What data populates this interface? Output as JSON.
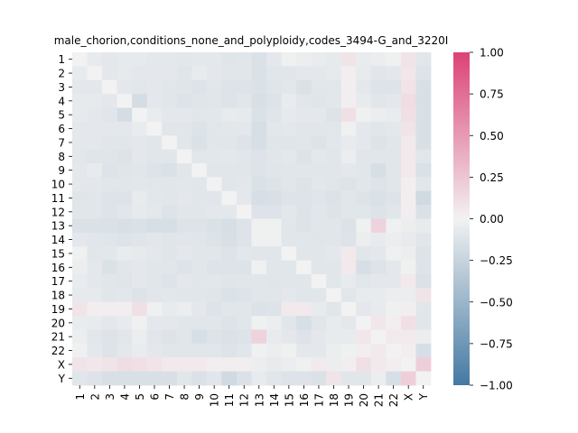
{
  "chart_data": {
    "type": "heatmap",
    "title": "male_chorion,conditions_none_and_polyploidy,codes_3494-G_and_3220I",
    "xlabel": "",
    "ylabel": "",
    "labels": [
      "1",
      "2",
      "3",
      "4",
      "5",
      "6",
      "7",
      "8",
      "9",
      "10",
      "11",
      "12",
      "13",
      "14",
      "15",
      "16",
      "17",
      "18",
      "19",
      "20",
      "21",
      "22",
      "X",
      "Y"
    ],
    "colorbar": {
      "min": -1.0,
      "max": 1.0,
      "ticks": [
        "1.00",
        "0.75",
        "0.50",
        "0.25",
        "0.00",
        "−0.25",
        "−0.50",
        "−0.75",
        "−1.00"
      ],
      "tick_values": [
        1.0,
        0.75,
        0.5,
        0.25,
        0.0,
        -0.25,
        -0.5,
        -0.75,
        -1.0
      ],
      "colors": {
        "negative": "#4479a2",
        "center": "#f2f2f2",
        "positive": "#dc4276"
      }
    },
    "matrix": [
      [
        0.0,
        -0.06,
        -0.08,
        -0.07,
        -0.07,
        -0.08,
        -0.08,
        -0.09,
        -0.08,
        -0.08,
        -0.11,
        -0.1,
        -0.14,
        -0.08,
        -0.02,
        -0.04,
        -0.05,
        -0.07,
        0.08,
        -0.05,
        -0.04,
        -0.02,
        0.08,
        -0.1
      ],
      [
        -0.06,
        0.0,
        -0.08,
        -0.07,
        -0.08,
        -0.08,
        -0.08,
        -0.11,
        -0.06,
        -0.08,
        -0.1,
        -0.1,
        -0.14,
        -0.1,
        -0.1,
        -0.08,
        -0.08,
        -0.07,
        0.02,
        -0.06,
        -0.1,
        -0.08,
        0.06,
        -0.12
      ],
      [
        -0.08,
        -0.08,
        0.0,
        -0.08,
        -0.1,
        -0.08,
        -0.1,
        -0.11,
        -0.12,
        -0.1,
        -0.12,
        -0.12,
        -0.14,
        -0.11,
        -0.09,
        -0.14,
        -0.1,
        -0.1,
        0.02,
        -0.08,
        -0.12,
        -0.12,
        0.08,
        -0.15
      ],
      [
        -0.07,
        -0.07,
        -0.08,
        0.0,
        -0.17,
        -0.08,
        -0.1,
        -0.12,
        -0.11,
        -0.1,
        -0.12,
        -0.1,
        -0.15,
        -0.12,
        -0.05,
        -0.1,
        -0.11,
        -0.09,
        0.02,
        -0.06,
        -0.1,
        -0.08,
        0.12,
        -0.15
      ],
      [
        -0.07,
        -0.08,
        -0.1,
        -0.17,
        0.0,
        -0.05,
        -0.08,
        -0.08,
        -0.1,
        -0.09,
        -0.06,
        -0.07,
        -0.14,
        -0.11,
        -0.07,
        -0.08,
        -0.08,
        -0.12,
        0.1,
        -0.02,
        -0.04,
        -0.05,
        0.1,
        -0.15
      ],
      [
        -0.08,
        -0.08,
        -0.08,
        -0.08,
        -0.05,
        0.0,
        -0.1,
        -0.1,
        -0.12,
        -0.1,
        -0.09,
        -0.08,
        -0.16,
        -0.09,
        -0.08,
        -0.1,
        -0.1,
        -0.1,
        -0.02,
        -0.08,
        -0.1,
        -0.08,
        0.08,
        -0.15
      ],
      [
        -0.08,
        -0.08,
        -0.1,
        -0.1,
        -0.08,
        -0.1,
        0.0,
        -0.1,
        -0.14,
        -0.1,
        -0.1,
        -0.12,
        -0.16,
        -0.11,
        -0.11,
        -0.1,
        -0.12,
        -0.09,
        -0.06,
        -0.08,
        -0.12,
        -0.1,
        0.05,
        -0.15
      ],
      [
        -0.09,
        -0.11,
        -0.11,
        -0.12,
        -0.08,
        -0.1,
        -0.1,
        0.0,
        -0.1,
        -0.09,
        -0.08,
        -0.1,
        -0.12,
        -0.1,
        -0.08,
        -0.12,
        -0.08,
        -0.1,
        -0.04,
        -0.1,
        -0.1,
        -0.1,
        0.05,
        -0.1
      ],
      [
        -0.08,
        -0.06,
        -0.12,
        -0.11,
        -0.1,
        -0.12,
        -0.14,
        -0.1,
        0.0,
        -0.1,
        -0.1,
        -0.1,
        -0.12,
        -0.11,
        -0.1,
        -0.1,
        -0.1,
        -0.1,
        -0.08,
        -0.1,
        -0.16,
        -0.1,
        0.05,
        -0.14
      ],
      [
        -0.08,
        -0.08,
        -0.1,
        -0.1,
        -0.09,
        -0.1,
        -0.1,
        -0.09,
        -0.1,
        0.0,
        -0.1,
        -0.08,
        -0.14,
        -0.12,
        -0.1,
        -0.12,
        -0.09,
        -0.11,
        -0.12,
        -0.1,
        -0.12,
        -0.1,
        0.02,
        -0.1
      ],
      [
        -0.11,
        -0.1,
        -0.12,
        -0.12,
        -0.06,
        -0.09,
        -0.1,
        -0.08,
        -0.1,
        -0.1,
        0.0,
        -0.08,
        -0.16,
        -0.15,
        -0.12,
        -0.12,
        -0.11,
        -0.13,
        -0.1,
        -0.12,
        -0.14,
        -0.12,
        0.02,
        -0.2
      ],
      [
        -0.1,
        -0.1,
        -0.12,
        -0.1,
        -0.07,
        -0.08,
        -0.12,
        -0.1,
        -0.1,
        -0.08,
        -0.08,
        0.0,
        -0.12,
        -0.12,
        -0.09,
        -0.12,
        -0.1,
        -0.12,
        -0.1,
        -0.1,
        -0.12,
        -0.1,
        0.02,
        -0.14
      ],
      [
        -0.14,
        -0.14,
        -0.14,
        -0.15,
        -0.14,
        -0.16,
        -0.16,
        -0.12,
        -0.12,
        -0.14,
        -0.16,
        -0.12,
        -0.02,
        -0.02,
        -0.1,
        -0.12,
        -0.1,
        -0.1,
        -0.13,
        -0.02,
        0.18,
        -0.02,
        -0.04,
        -0.06
      ],
      [
        -0.08,
        -0.1,
        -0.11,
        -0.12,
        -0.11,
        -0.09,
        -0.11,
        -0.1,
        -0.11,
        -0.12,
        -0.15,
        -0.12,
        -0.02,
        -0.02,
        -0.1,
        -0.1,
        -0.11,
        -0.1,
        -0.12,
        -0.04,
        -0.06,
        -0.04,
        -0.06,
        -0.1
      ],
      [
        -0.02,
        -0.1,
        -0.09,
        -0.05,
        -0.07,
        -0.08,
        -0.11,
        -0.08,
        -0.1,
        -0.1,
        -0.12,
        -0.09,
        -0.1,
        -0.1,
        0.0,
        -0.1,
        -0.1,
        -0.08,
        0.05,
        -0.1,
        -0.08,
        -0.02,
        -0.04,
        -0.12
      ],
      [
        -0.04,
        -0.08,
        -0.14,
        -0.1,
        -0.08,
        -0.1,
        -0.1,
        -0.12,
        -0.1,
        -0.12,
        -0.12,
        -0.12,
        -0.02,
        -0.1,
        -0.1,
        0.0,
        -0.1,
        -0.1,
        0.05,
        -0.16,
        -0.12,
        -0.08,
        -0.02,
        -0.12
      ],
      [
        -0.05,
        -0.08,
        -0.1,
        -0.11,
        -0.08,
        -0.1,
        -0.12,
        -0.08,
        -0.1,
        -0.09,
        -0.11,
        -0.1,
        -0.1,
        -0.11,
        -0.1,
        -0.1,
        0.0,
        -0.1,
        -0.06,
        -0.1,
        -0.08,
        -0.08,
        0.05,
        -0.14
      ],
      [
        -0.07,
        -0.07,
        -0.1,
        -0.09,
        -0.12,
        -0.1,
        -0.09,
        -0.1,
        -0.1,
        -0.11,
        -0.13,
        -0.12,
        -0.1,
        -0.1,
        -0.08,
        -0.1,
        -0.1,
        0.0,
        -0.1,
        -0.06,
        -0.06,
        -0.04,
        -0.04,
        0.08
      ],
      [
        0.08,
        0.02,
        0.02,
        0.02,
        0.1,
        -0.02,
        -0.06,
        -0.04,
        -0.08,
        -0.12,
        -0.1,
        -0.1,
        -0.13,
        -0.12,
        0.05,
        0.05,
        -0.06,
        -0.1,
        0.0,
        -0.08,
        -0.06,
        -0.02,
        0.02,
        -0.1
      ],
      [
        -0.05,
        -0.06,
        -0.08,
        -0.06,
        -0.02,
        -0.08,
        -0.08,
        -0.1,
        -0.1,
        -0.1,
        -0.12,
        -0.1,
        -0.02,
        -0.04,
        -0.1,
        -0.16,
        -0.1,
        -0.06,
        -0.08,
        0.0,
        0.06,
        0.02,
        0.1,
        -0.1
      ],
      [
        -0.04,
        -0.1,
        -0.12,
        -0.1,
        -0.04,
        -0.1,
        -0.12,
        -0.1,
        -0.16,
        -0.12,
        -0.14,
        -0.12,
        0.18,
        -0.06,
        -0.08,
        -0.12,
        -0.08,
        -0.06,
        -0.06,
        0.06,
        0.0,
        0.05,
        0.05,
        -0.04
      ],
      [
        -0.02,
        -0.08,
        -0.12,
        -0.08,
        -0.05,
        -0.08,
        -0.1,
        -0.1,
        -0.1,
        -0.1,
        -0.12,
        -0.1,
        -0.02,
        -0.04,
        -0.02,
        -0.08,
        -0.08,
        -0.04,
        -0.02,
        0.02,
        0.05,
        0.0,
        0.02,
        -0.16
      ],
      [
        0.08,
        0.06,
        0.08,
        0.12,
        0.1,
        0.08,
        0.05,
        0.05,
        0.05,
        0.02,
        0.02,
        0.02,
        -0.04,
        -0.06,
        -0.04,
        -0.02,
        0.05,
        -0.04,
        0.02,
        0.1,
        0.05,
        0.02,
        0.0,
        0.2
      ],
      [
        -0.1,
        -0.12,
        -0.15,
        -0.15,
        -0.15,
        -0.15,
        -0.15,
        -0.1,
        -0.14,
        -0.1,
        -0.2,
        -0.14,
        -0.06,
        -0.1,
        -0.12,
        -0.12,
        -0.14,
        0.08,
        -0.1,
        -0.1,
        -0.04,
        -0.16,
        0.2,
        0.0
      ]
    ]
  }
}
